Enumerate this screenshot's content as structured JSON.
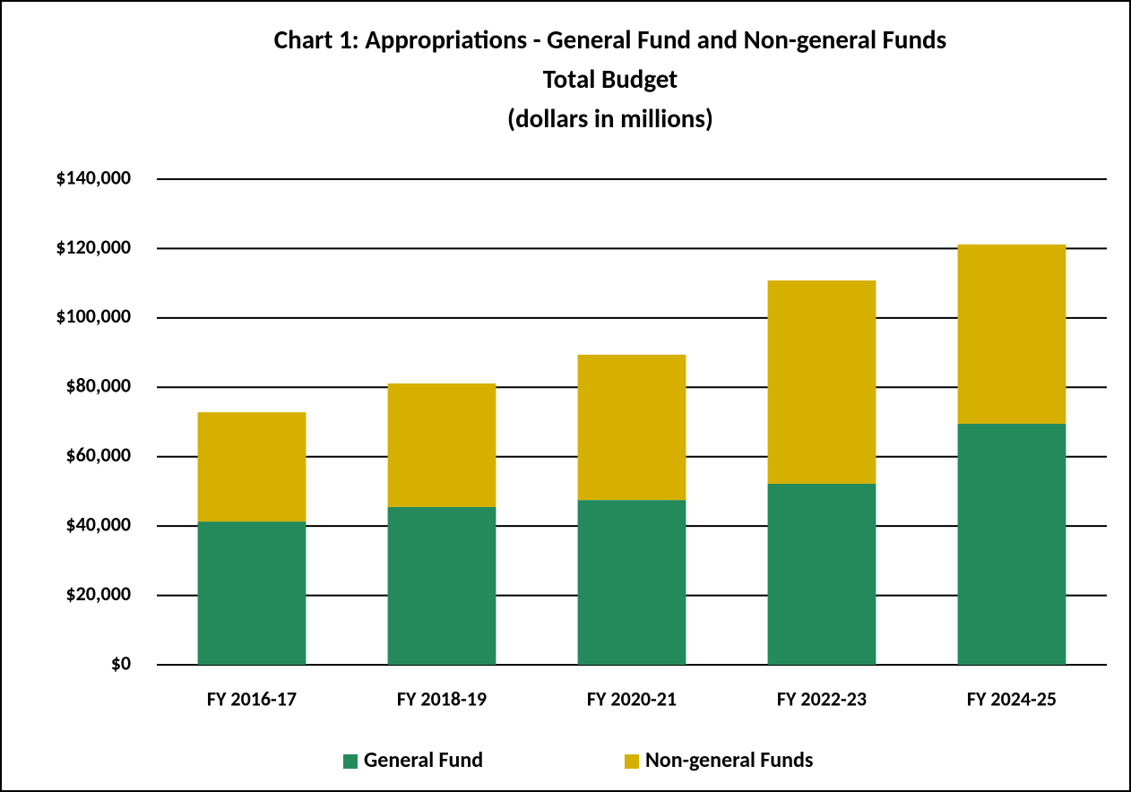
{
  "chart_data": {
    "type": "stacked_bar",
    "title": "Chart 1: Appropriations - General Fund and Non-general Funds",
    "subtitle": [
      "Total Budget",
      "(dollars in millions)"
    ],
    "categories": [
      "FY 2016-17",
      "FY 2018-19",
      "FY 2020-21",
      "FY 2022-23",
      "FY 2024-25"
    ],
    "series": [
      {
        "name": "General Fund",
        "color": "#248a5c",
        "values": [
          41300,
          45500,
          47500,
          52200,
          69500
        ]
      },
      {
        "name": "Non-general Funds",
        "color": "#d6b000",
        "values": [
          31500,
          35600,
          41900,
          58600,
          51700
        ]
      }
    ],
    "ylim": [
      0,
      140000
    ],
    "yticks": [
      {
        "value": 0,
        "label": "$0"
      },
      {
        "value": 20000,
        "label": "$20,000"
      },
      {
        "value": 40000,
        "label": "$40,000"
      },
      {
        "value": 60000,
        "label": "$60,000"
      },
      {
        "value": 80000,
        "label": "$80,000"
      },
      {
        "value": 100000,
        "label": "$100,000"
      },
      {
        "value": 120000,
        "label": "$120,000"
      },
      {
        "value": 140000,
        "label": "$140,000"
      }
    ],
    "grid": true,
    "legend": "bottom"
  }
}
